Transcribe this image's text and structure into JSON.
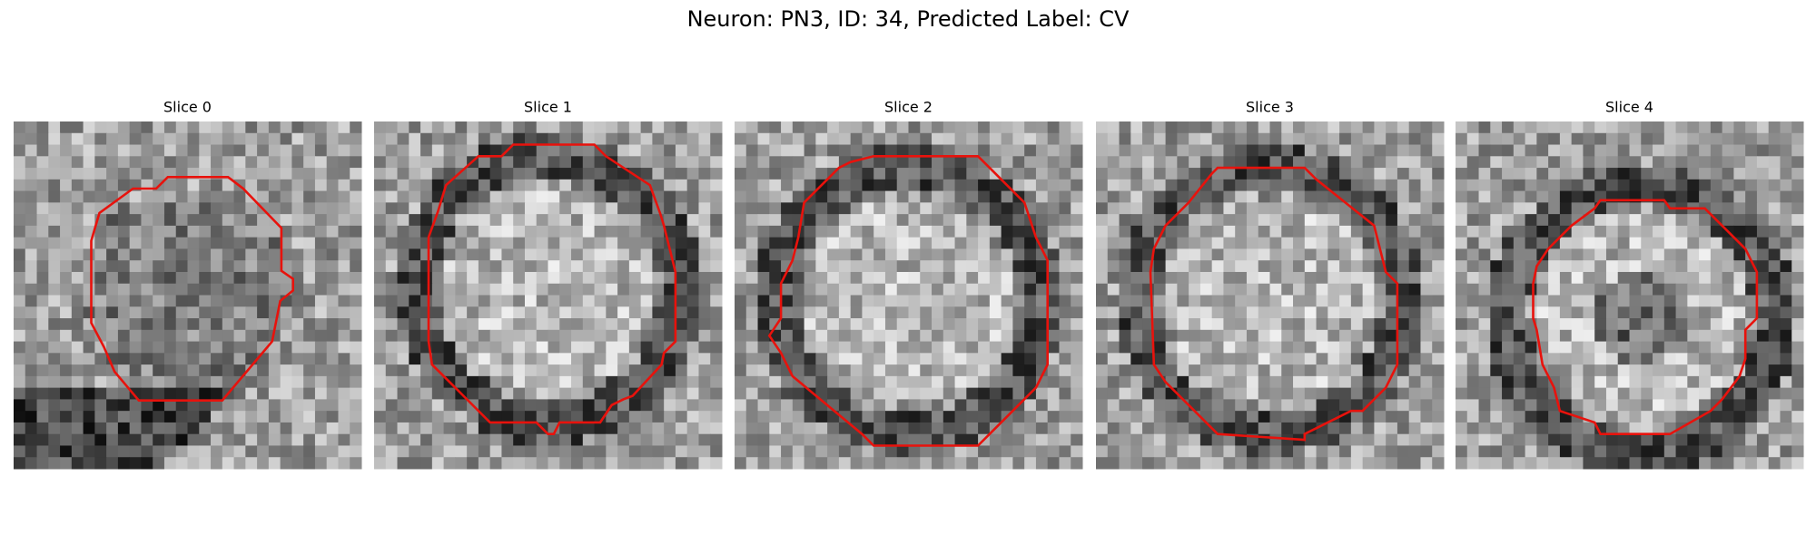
{
  "title": "Neuron: PN3, ID: 34, Predicted Label: CV",
  "panels": [
    {
      "title": "Slice 0"
    },
    {
      "title": "Slice 1"
    },
    {
      "title": "Slice 2"
    },
    {
      "title": "Slice 3"
    },
    {
      "title": "Slice 4"
    }
  ]
}
